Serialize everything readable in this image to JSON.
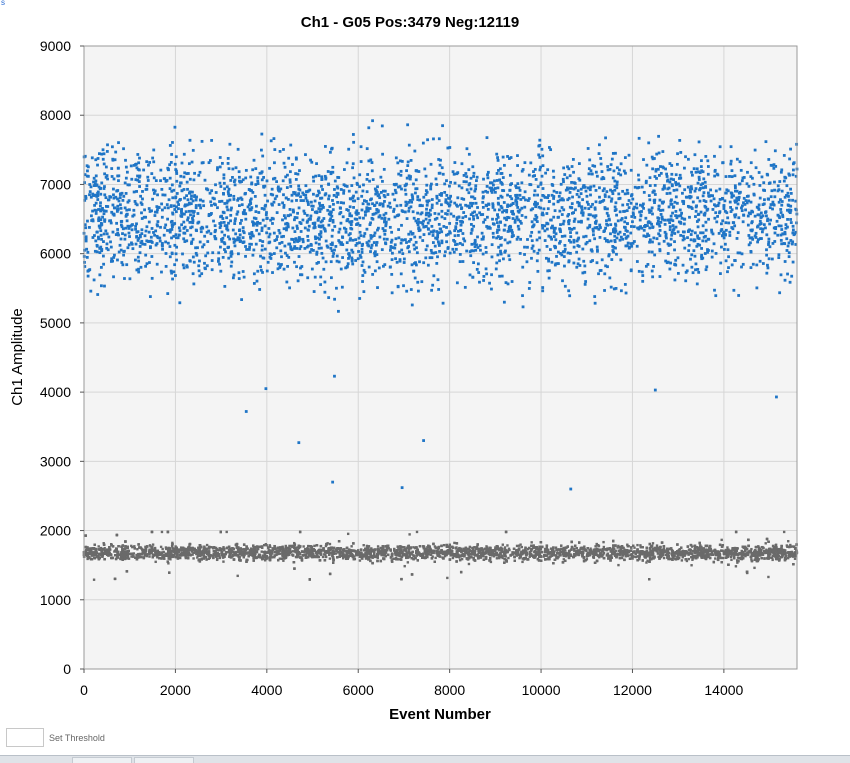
{
  "corner_glyph": "s",
  "chart_data": {
    "type": "scatter",
    "title": "Ch1 - G05 Pos:3479 Neg:12119",
    "xlabel": "Event Number",
    "ylabel": "Ch1 Amplitude",
    "xlim": [
      0,
      15600
    ],
    "ylim": [
      0,
      9000
    ],
    "x_ticks": [
      0,
      2000,
      4000,
      6000,
      8000,
      10000,
      12000,
      14000
    ],
    "y_ticks": [
      0,
      1000,
      2000,
      3000,
      4000,
      5000,
      6000,
      7000,
      8000,
      9000
    ],
    "grid": true,
    "legend": "none",
    "colors": {
      "positive": "#1f75c6",
      "negative": "#6a6a6a",
      "plot_background": "#f4f4f4",
      "grid": "#d6d6d6"
    },
    "series": [
      {
        "role": "positive",
        "count": 3479,
        "cluster_center_y": 6550,
        "cluster_y_range": [
          4700,
          8000
        ],
        "outliers": [
          {
            "x": 3550,
            "y": 3720
          },
          {
            "x": 3980,
            "y": 4050
          },
          {
            "x": 4700,
            "y": 3270
          },
          {
            "x": 5440,
            "y": 2700
          },
          {
            "x": 5480,
            "y": 4230
          },
          {
            "x": 6960,
            "y": 2620
          },
          {
            "x": 7430,
            "y": 3300
          },
          {
            "x": 10650,
            "y": 2600
          },
          {
            "x": 12500,
            "y": 4030
          },
          {
            "x": 15150,
            "y": 3930
          }
        ]
      },
      {
        "role": "negative",
        "count": 12119,
        "cluster_center_y": 1680,
        "cluster_y_range": [
          1180,
          1980
        ]
      }
    ]
  },
  "threshold": {
    "value": "",
    "label": "Set Threshold"
  }
}
